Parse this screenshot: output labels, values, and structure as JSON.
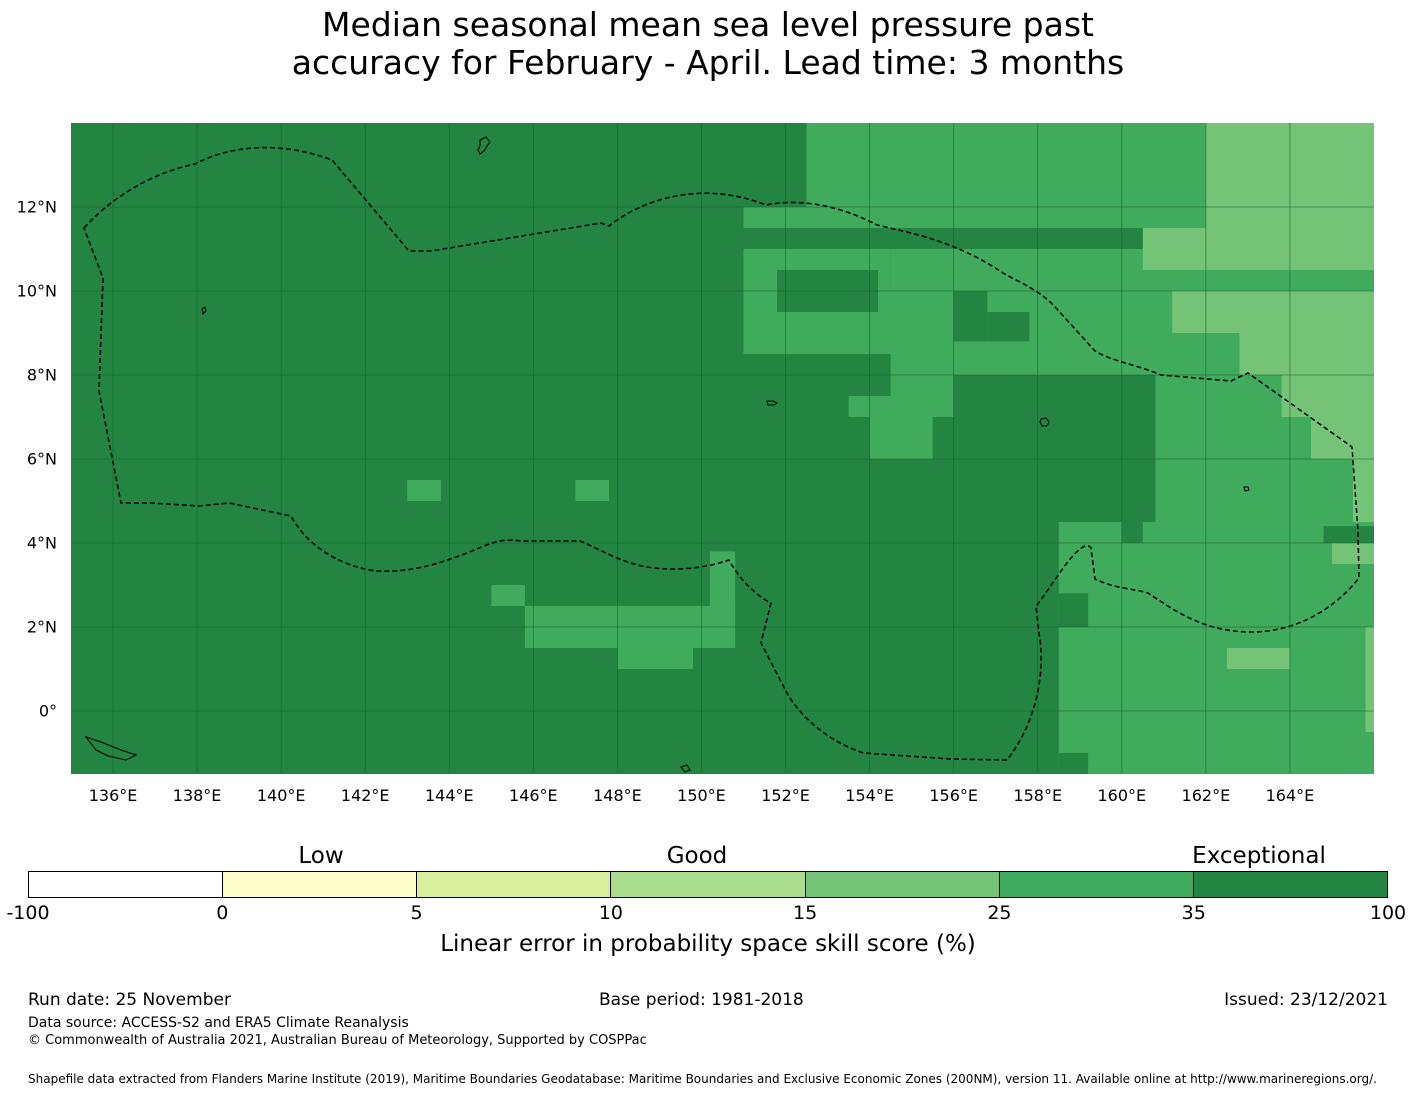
{
  "title": {
    "line1": "Median seasonal mean sea level pressure past",
    "line2": "accuracy for February - April. Lead time: 3 months"
  },
  "chart_data": {
    "type": "heatmap",
    "map": "Western Pacific (Federated States of Micronesia EEZ)",
    "lon_range": [
      135.0,
      166.0
    ],
    "lat_range": [
      -1.5,
      14.0
    ],
    "lon_ticks": [
      "136°E",
      "138°E",
      "140°E",
      "142°E",
      "144°E",
      "146°E",
      "148°E",
      "150°E",
      "152°E",
      "154°E",
      "156°E",
      "158°E",
      "160°E",
      "162°E",
      "164°E"
    ],
    "lat_ticks": [
      "0°",
      "2°N",
      "4°N",
      "6°N",
      "8°N",
      "10°N",
      "12°N"
    ],
    "colorbar": {
      "title": "Linear error in probability space skill score (%)",
      "ticks": [
        "-100",
        "0",
        "5",
        "10",
        "15",
        "25",
        "35",
        "100"
      ],
      "categories": [
        "Low",
        "Good",
        "Exceptional"
      ],
      "colors": [
        "#ffffff",
        "#fefecb",
        "#d8ef9e",
        "#aadd8e",
        "#75c377",
        "#40ab5d",
        "#238541"
      ]
    },
    "regions_description": "Darkest green (35-100) over most of the domain west of ~153E; 25-35 band in the north-east and south-east; 15-25 band north-east of 160E."
  },
  "footer": {
    "run_date": "Run date: 25 November",
    "base_period": "Base period: 1981-2018",
    "issued": "Issued: 23/12/2021",
    "data_source": "Data source: ACCESS-S2 and ERA5 Climate Reanalysis",
    "copyright": "© Commonwealth of Australia 2021, Australian Bureau of Meteorology, Supported by COSPPac",
    "shapefile": "Shapefile data extracted from Flanders Marine Institute (2019), Maritime Boundaries Geodatabase: Maritime Boundaries and Exclusive Economic Zones (200NM), version 11. Available online at http://www.marineregions.org/."
  }
}
